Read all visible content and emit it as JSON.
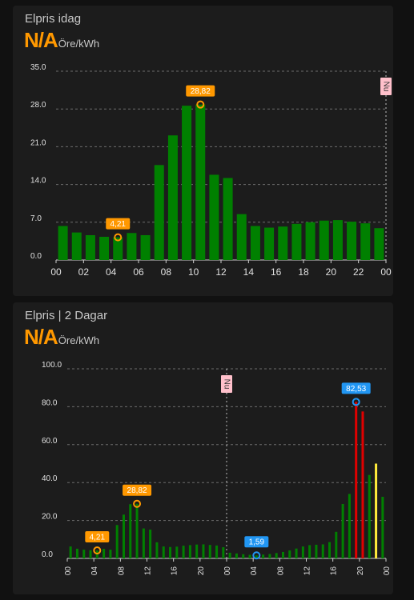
{
  "card1": {
    "title": "Elpris idag",
    "state_value": "N/A",
    "state_unit": "Öre/kWh"
  },
  "card2": {
    "title": "Elpris | 2 Dagar",
    "state_value": "N/A",
    "state_unit": "Öre/kWh"
  },
  "colors": {
    "background": "#111111",
    "card": "#1c1c1c",
    "bar_green": "#008000",
    "bar_red": "#e00000",
    "bar_yellow": "#ffeb3b",
    "orange_marker": "#ff9800",
    "blue_marker": "#2196f3",
    "now_label_bg": "#ffc0cb"
  },
  "chart_data": [
    {
      "type": "bar",
      "title": "",
      "xlabel": "",
      "ylabel": "",
      "ylim": [
        0,
        35
      ],
      "y_ticks": [
        "0.0",
        "7.0",
        "14.0",
        "21.0",
        "28.0",
        "35.0"
      ],
      "x_tick_labels": [
        "00",
        "02",
        "04",
        "06",
        "08",
        "10",
        "12",
        "14",
        "16",
        "18",
        "20",
        "22",
        "00"
      ],
      "x": [
        0,
        1,
        2,
        3,
        4,
        5,
        6,
        7,
        8,
        9,
        10,
        11,
        12,
        13,
        14,
        15,
        16,
        17,
        18,
        19,
        20,
        21,
        22,
        23
      ],
      "values": [
        6.3,
        5.1,
        4.6,
        4.3,
        4.21,
        5.0,
        4.6,
        17.6,
        23.1,
        28.6,
        28.82,
        15.8,
        15.2,
        8.5,
        6.3,
        6.0,
        6.2,
        6.7,
        7.0,
        7.3,
        7.4,
        7.1,
        6.8,
        5.9
      ],
      "grid": true,
      "now_label": "Nu",
      "now_hour": 24,
      "annotations": [
        {
          "label": "4,21",
          "x": 4,
          "y": 4.21,
          "color": "orange"
        },
        {
          "label": "28,82",
          "x": 10,
          "y": 28.82,
          "color": "orange"
        }
      ]
    },
    {
      "type": "bar",
      "title": "",
      "xlabel": "",
      "ylabel": "",
      "ylim": [
        0,
        100
      ],
      "y_ticks": [
        "0.0",
        "20.0",
        "40.0",
        "60.0",
        "80.0",
        "100.0"
      ],
      "x_tick_labels": [
        "00",
        "04",
        "08",
        "12",
        "16",
        "20",
        "00",
        "04",
        "08",
        "12",
        "16",
        "20",
        "00"
      ],
      "x": [
        0,
        1,
        2,
        3,
        4,
        5,
        6,
        7,
        8,
        9,
        10,
        11,
        12,
        13,
        14,
        15,
        16,
        17,
        18,
        19,
        20,
        21,
        22,
        23,
        24,
        25,
        26,
        27,
        28,
        29,
        30,
        31,
        32,
        33,
        34,
        35,
        36,
        37,
        38,
        39,
        40,
        41,
        42,
        43,
        44,
        45,
        46,
        47
      ],
      "values": [
        6.3,
        5.1,
        4.6,
        4.3,
        4.21,
        5.0,
        4.6,
        17.6,
        23.1,
        28.6,
        28.82,
        15.8,
        15.2,
        8.5,
        6.3,
        6.0,
        6.2,
        6.7,
        7.0,
        7.3,
        7.4,
        7.1,
        6.8,
        5.9,
        3.0,
        2.6,
        2.2,
        1.9,
        1.59,
        2.0,
        2.3,
        2.8,
        3.4,
        4.2,
        5.2,
        6.3,
        7.0,
        7.2,
        7.4,
        8.6,
        14.0,
        28.7,
        34.0,
        82.53,
        77.5,
        44.0,
        50.0,
        32.5
      ],
      "highlight_colors": {
        "43": "red",
        "44": "red",
        "46": "yellow"
      },
      "grid": true,
      "now_label": "Nu",
      "now_hour": 24,
      "annotations": [
        {
          "label": "4,21",
          "x": 4,
          "y": 4.21,
          "color": "orange"
        },
        {
          "label": "28,82",
          "x": 10,
          "y": 28.82,
          "color": "orange"
        },
        {
          "label": "1,59",
          "x": 28,
          "y": 1.59,
          "color": "blue"
        },
        {
          "label": "82,53",
          "x": 43,
          "y": 82.53,
          "color": "blue"
        }
      ]
    }
  ]
}
